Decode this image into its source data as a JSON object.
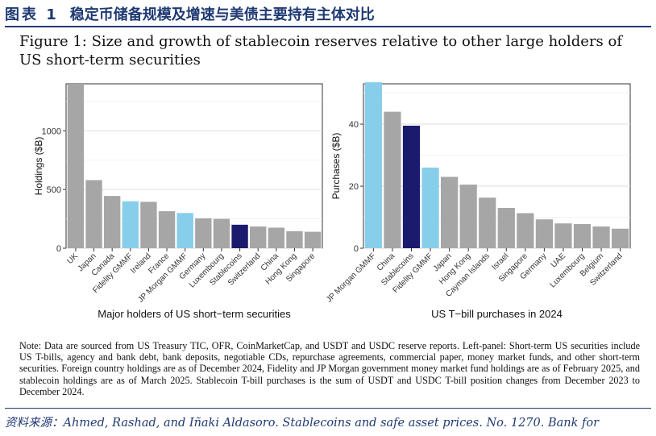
{
  "header": {
    "label": "图表 1",
    "title": "稳定币储备规模及增速与美债主要持有主体对比"
  },
  "figure_title": "Figure 1: Size and growth of stablecoin reserves relative to other large holders of US short-term securities",
  "colors": {
    "gray": "#a6a6a6",
    "light_blue": "#87ceeb",
    "navy": "#1b1b6e",
    "header": "#1f3a73"
  },
  "chart_data": [
    {
      "type": "bar",
      "title": "Major holders of US short−term securities",
      "xlabel": "Major holders of US short−term securities",
      "ylabel": "Holdings ($B)",
      "ylim": [
        0,
        1400
      ],
      "yticks": [
        0,
        500,
        1000
      ],
      "grid": true,
      "categories": [
        "UK",
        "Japan",
        "Canada",
        "Fidelity GMMF",
        "Ireland",
        "France",
        "JP Morgan GMMF",
        "Germany",
        "Luxembourg",
        "Stablecoins",
        "Switzerland",
        "China",
        "Hong Kong",
        "Singapore"
      ],
      "values": [
        1400,
        580,
        445,
        400,
        395,
        315,
        300,
        255,
        250,
        200,
        185,
        175,
        145,
        140
      ],
      "bar_colors": [
        "gray",
        "gray",
        "gray",
        "light_blue",
        "gray",
        "gray",
        "light_blue",
        "gray",
        "gray",
        "navy",
        "gray",
        "gray",
        "gray",
        "gray"
      ]
    },
    {
      "type": "bar",
      "title": "US T−bill purchases in 2024",
      "xlabel": "US T−bill purchases in 2024",
      "ylabel": "Purchases ($B)",
      "ylim": [
        0,
        53
      ],
      "yticks": [
        0,
        20,
        40
      ],
      "grid": true,
      "categories": [
        "JP Morgan GMMF",
        "China",
        "Stablecoins",
        "Fidelity GMMF",
        "Japan",
        "Hong Kong",
        "Cayman Islands",
        "Israel",
        "Singapore",
        "Germany",
        "UAE",
        "Luxembourg",
        "Belgium",
        "Switzerland"
      ],
      "values": [
        53.5,
        44,
        39.5,
        26,
        23,
        20.5,
        16.3,
        13,
        11.3,
        9.3,
        8,
        7.8,
        7,
        6.3
      ],
      "bar_colors": [
        "light_blue",
        "gray",
        "navy",
        "light_blue",
        "gray",
        "gray",
        "gray",
        "gray",
        "gray",
        "gray",
        "gray",
        "gray",
        "gray",
        "gray"
      ]
    }
  ],
  "note": "Note: Data are sourced from US Treasury TIC, OFR, CoinMarketCap, and USDT and USDC reserve reports. Left-panel: Short-term US securities include US T-bills, agency and bank debt, bank deposits, negotiable CDs, repurchase agreements, commercial paper, money market funds, and other short-term securities. Foreign country holdings are as of December 2024, Fidelity and JP Morgan government money market fund holdings are as of February 2025, and stablecoin holdings are as of March 2025. Stablecoin T-bill purchases is the sum of USDT and USDC T-bill position changes from December 2023 to December 2024.",
  "source": "资料来源：Ahmed, Rashad, and Iñaki Aldasoro. Stablecoins and safe asset prices. No. 1270. Bank for"
}
